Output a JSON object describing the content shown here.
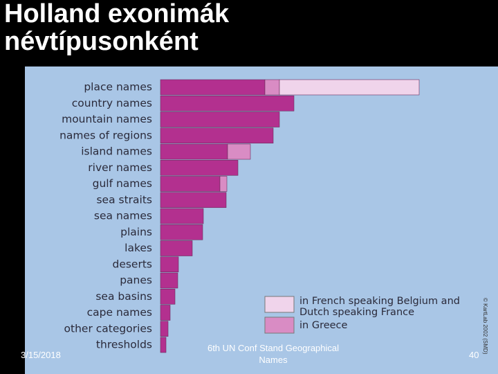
{
  "chart_data": {
    "type": "stacked-bar-horizontal",
    "title": "Holland exonimák névtípusonként",
    "categories": [
      "place names",
      "country names",
      "mountain names",
      "names of regions",
      "island names",
      "river names",
      "gulf names",
      "sea straits",
      "sea names",
      "plains",
      "lakes",
      "deserts",
      "panes",
      "sea basins",
      "cape names",
      "other categories",
      "thresholds"
    ],
    "series": [
      {
        "color": "#b3308f",
        "values": [
          151,
          193,
          172,
          163,
          97,
          112,
          86,
          95,
          62,
          61,
          46,
          26,
          25,
          21,
          14,
          11,
          8
        ]
      },
      {
        "name": "in Greece",
        "color": "#d98cc4",
        "values": [
          21,
          null,
          null,
          null,
          33,
          null,
          10,
          null,
          null,
          null,
          null,
          null,
          null,
          null,
          null,
          null,
          null
        ]
      },
      {
        "name": "in French speaking Belgium and Dutch speaking France",
        "color": "#f0d4eb",
        "values": [
          202,
          null,
          null,
          null,
          null,
          null,
          null,
          null,
          null,
          null,
          null,
          null,
          null,
          null,
          null,
          null,
          null
        ]
      }
    ]
  },
  "credit": "© KartLab 2002 (SMD)",
  "footer": {
    "date": "3/15/2018",
    "center": "6th UN Conf Stand Geographical Names",
    "page": "40"
  }
}
